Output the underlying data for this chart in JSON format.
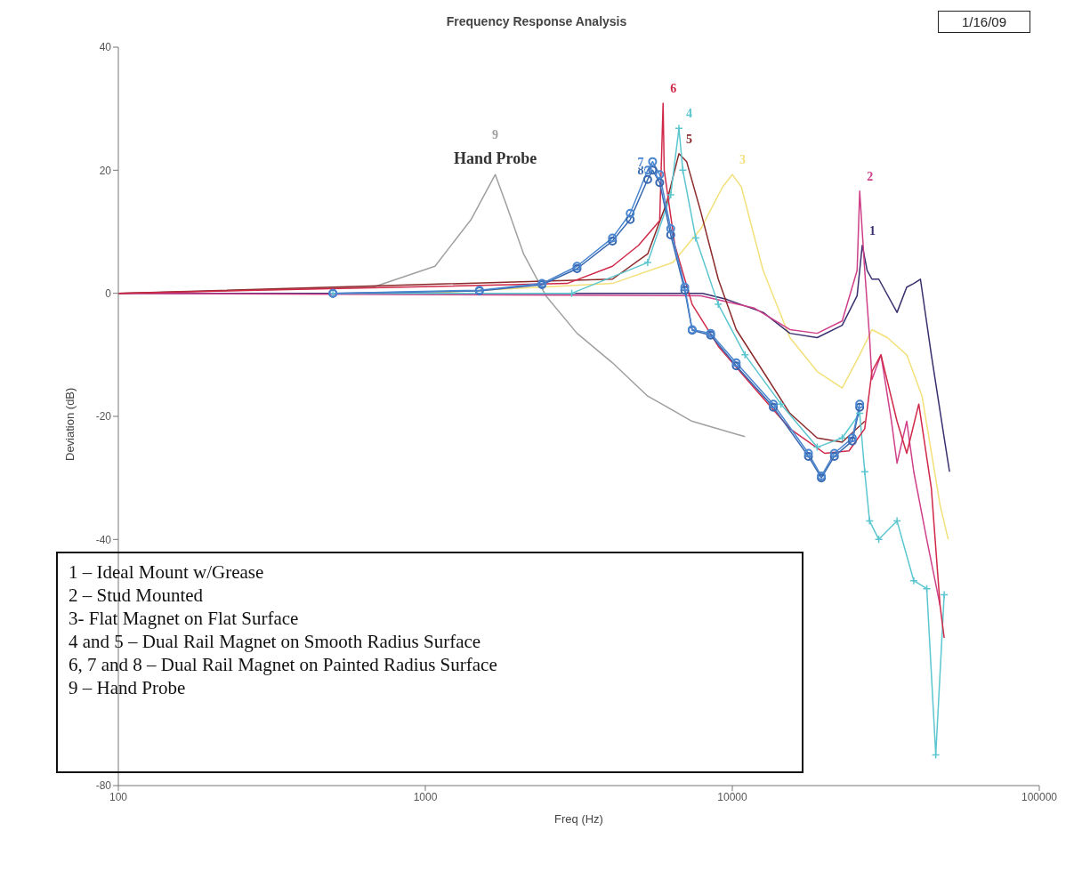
{
  "chart_data": {
    "type": "line",
    "title": "Frequency Response Analysis",
    "xlabel": "Freq (Hz)",
    "ylabel": "Deviation (dB)",
    "log": "x",
    "xlim": [
      100,
      100000
    ],
    "xticks": [
      100,
      1000,
      10000,
      100000
    ],
    "ylim": [
      -80,
      40
    ],
    "yticks": [
      -80,
      -40,
      -20,
      0,
      20,
      40
    ],
    "marker": "none",
    "annotations": [
      "1/16/09",
      "1 – Ideal Mount w/Grease",
      "2 – Stud Mounted",
      "3- Flat Magnet on Flat Surface",
      "4 and 5  – Dual Rail Magnet on Smooth Radius Surface",
      "6, 7 and 8  – Dual Rail Magnet on Painted Radius Surface",
      "9 – Hand Probe",
      {
        "text": "Hand Probe",
        "x": 1690,
        "y": 19.3
      }
    ],
    "series": [
      {
        "name": "9",
        "color": "#a0a0a0",
        "x": [
          100,
          676,
          1075,
          1410,
          1690,
          1830,
          2090,
          2470,
          3120,
          4070,
          5300,
          7400,
          10300,
          11000
        ],
        "values": [
          0,
          1,
          4.4,
          12,
          19.3,
          14.6,
          6.4,
          -0.4,
          -6.5,
          -11.3,
          -16.7,
          -20.8,
          -22.9,
          -23.3
        ]
      },
      {
        "name": "3",
        "color": "#f2e07a",
        "x": [
          1000,
          4070,
          6400,
          7900,
          9300,
          10000,
          10700,
          12600,
          15400,
          18900,
          22800,
          26000,
          28500,
          32000,
          37000,
          41500,
          47500,
          50500
        ],
        "values": [
          0,
          1.6,
          5,
          10.5,
          17.3,
          19.3,
          17.3,
          3.7,
          -7.2,
          -12.7,
          -15.4,
          -10,
          -5.9,
          -7.2,
          -10,
          -16.7,
          -34.4,
          -40
        ]
      },
      {
        "name": "1",
        "color": "#3a2f6e",
        "x": [
          100,
          8000,
          9600,
          12600,
          15400,
          18900,
          22800,
          25500,
          26500,
          27500,
          28500,
          30000,
          34400,
          37000,
          39000,
          41000,
          44500,
          49000,
          51000
        ],
        "values": [
          0,
          0,
          -1,
          -3.1,
          -6.5,
          -7.2,
          -5.2,
          -0.4,
          7.8,
          3.7,
          2.3,
          2.3,
          -3.1,
          1,
          1.6,
          2.3,
          -10,
          -23.5,
          -29
        ]
      },
      {
        "name": "2",
        "color": "#d0408a",
        "x": [
          100,
          7900,
          11800,
          15400,
          18900,
          22800,
          25500,
          26000,
          27000,
          28000,
          28500,
          30500,
          33000,
          34400,
          37000,
          39000,
          43000,
          47500
        ],
        "values": [
          0,
          -0.4,
          -2.4,
          -5.9,
          -6.5,
          -4.5,
          3.7,
          16.6,
          3.7,
          -7.2,
          -14,
          -10,
          -20.8,
          -27.6,
          -20.8,
          -29,
          -40,
          -50.7
        ]
      },
      {
        "name": "5",
        "color": "#8b2a2a",
        "x": [
          100,
          4070,
          5300,
          6100,
          6700,
          7100,
          7900,
          9000,
          10300,
          12600,
          15400,
          18900,
          22800,
          27000
        ],
        "values": [
          0,
          2.3,
          6.4,
          14.6,
          22.7,
          21.4,
          13.2,
          2.3,
          -5.9,
          -12.7,
          -19.5,
          -23.5,
          -24.2,
          -20.8
        ]
      },
      {
        "name": "4",
        "color": "#5cc6d0",
        "marker": "cross",
        "x": [
          500,
          3000,
          5300,
          6300,
          6700,
          6900,
          7600,
          9000,
          11000,
          14400,
          18900,
          22800,
          26000,
          27000,
          28000,
          30000,
          34400,
          39000,
          43000,
          46000,
          49000
        ],
        "values": [
          0,
          0,
          5,
          16,
          26.8,
          20,
          9,
          -1.8,
          -10,
          -18,
          -25,
          -23.5,
          -19.5,
          -29,
          -37,
          -40,
          -37,
          -46.7,
          -48,
          -75,
          -49
        ]
      },
      {
        "name": "6",
        "color": "#d02848",
        "x": [
          100,
          2900,
          4070,
          4950,
          5800,
          5950,
          6000,
          6500,
          7400,
          9000,
          11800,
          15400,
          20000,
          24000,
          27000,
          28500,
          30500,
          34400,
          37000,
          40500,
          44500,
          47500,
          49000
        ],
        "values": [
          0,
          1.6,
          4.4,
          7.8,
          11.8,
          30.9,
          20,
          7.8,
          -1.8,
          -8.6,
          -15.4,
          -22,
          -26,
          -25.6,
          -22,
          -12.7,
          -10,
          -20.8,
          -26,
          -18,
          -31.7,
          -50.7,
          -56
        ]
      },
      {
        "name": "8",
        "color": "#3868b0",
        "marker": "circle",
        "x": [
          500,
          1500,
          2400,
          3120,
          4070,
          4650,
          5300,
          5500,
          5800,
          6300,
          7000,
          7400,
          8500,
          10300,
          13600,
          17700,
          19500,
          21500,
          24600,
          26000
        ],
        "values": [
          0,
          0.4,
          1.4,
          4,
          8.5,
          12,
          18.5,
          20,
          18,
          9.5,
          0.5,
          -6,
          -6.8,
          -11.8,
          -18.5,
          -26.5,
          -30,
          -26.5,
          -24,
          -18.5
        ]
      },
      {
        "name": "7",
        "color": "#4a86d0",
        "marker": "circle",
        "x": [
          500,
          1500,
          2400,
          3120,
          4070,
          4650,
          5300,
          5500,
          5800,
          6300,
          7000,
          7400,
          8500,
          10300,
          13600,
          17700,
          19500,
          21500,
          24600,
          26000
        ],
        "values": [
          0,
          0.5,
          1.6,
          4.4,
          9,
          13,
          20,
          21.4,
          19.3,
          10.5,
          1,
          -5.9,
          -6.5,
          -11.3,
          -18,
          -26,
          -29.7,
          -26,
          -23.5,
          -18
        ]
      }
    ]
  }
}
